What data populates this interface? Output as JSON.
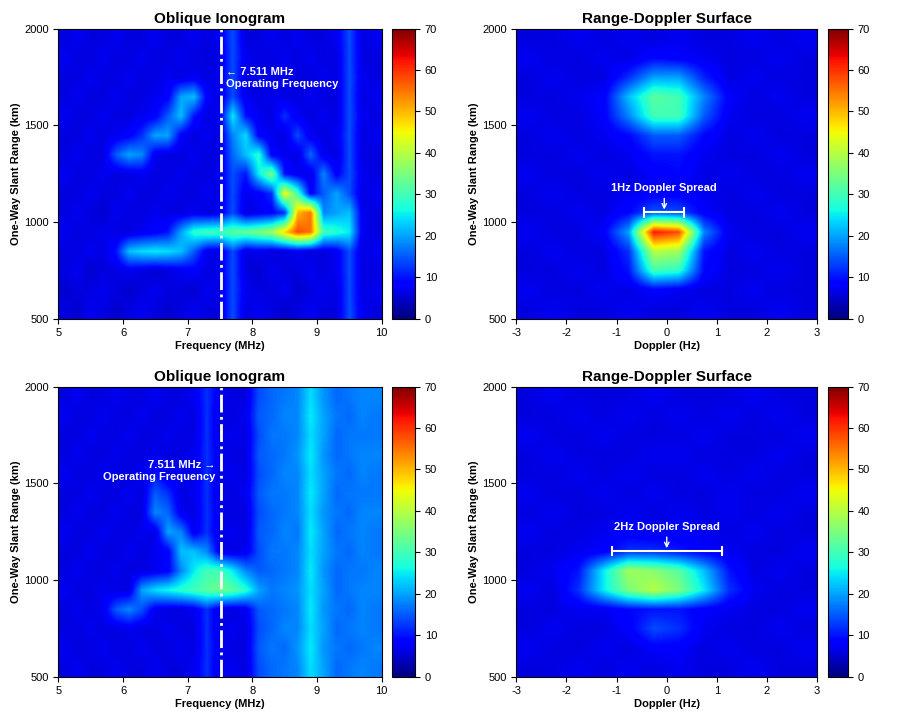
{
  "chart_data": [
    {
      "type": "heatmap",
      "title": "Oblique Ionogram",
      "x_label": "Frequency (MHz)",
      "y_label": "One-Way Slant Range (km)",
      "xlim": [
        5,
        10
      ],
      "ylim": [
        500,
        2000
      ],
      "xticks": [
        5,
        6,
        7,
        8,
        9,
        10
      ],
      "yticks": [
        500,
        1000,
        1500,
        2000
      ],
      "colorbar": {
        "range": [
          0,
          70
        ],
        "ticks": [
          0,
          10,
          20,
          30,
          40,
          50,
          60,
          70
        ]
      },
      "operating_frequency": {
        "value": 7.511,
        "label": "← 7.511 MHz\nOperating Frequency"
      },
      "cells": [
        [
          6,
          5,
          7,
          6,
          5,
          6,
          7,
          6,
          5,
          6,
          7,
          6,
          6,
          14,
          6,
          7,
          6,
          5,
          6,
          7,
          6,
          6,
          14,
          7,
          6
        ],
        [
          5,
          6,
          6,
          7,
          6,
          5,
          6,
          7,
          6,
          6,
          5,
          7,
          6,
          14,
          7,
          6,
          6,
          7,
          5,
          6,
          7,
          6,
          14,
          6,
          7
        ],
        [
          6,
          7,
          5,
          6,
          6,
          7,
          6,
          5,
          6,
          7,
          8,
          6,
          7,
          14,
          6,
          5,
          7,
          6,
          6,
          7,
          6,
          7,
          14,
          6,
          6
        ],
        [
          6,
          6,
          7,
          6,
          10,
          22,
          24,
          25,
          24,
          22,
          15,
          7,
          6,
          14,
          6,
          7,
          6,
          6,
          7,
          6,
          6,
          7,
          14,
          6,
          7
        ],
        [
          7,
          6,
          6,
          7,
          6,
          6,
          7,
          8,
          10,
          20,
          28,
          30,
          30,
          32,
          33,
          35,
          38,
          48,
          58,
          55,
          30,
          28,
          25,
          7,
          6
        ],
        [
          6,
          7,
          6,
          5,
          7,
          6,
          6,
          7,
          6,
          6,
          7,
          6,
          7,
          14,
          6,
          7,
          8,
          12,
          50,
          55,
          18,
          20,
          22,
          7,
          6
        ],
        [
          6,
          6,
          7,
          6,
          6,
          7,
          6,
          6,
          7,
          6,
          6,
          7,
          6,
          14,
          7,
          8,
          12,
          45,
          30,
          8,
          15,
          20,
          14,
          6,
          7
        ],
        [
          7,
          6,
          6,
          7,
          6,
          6,
          7,
          6,
          6,
          7,
          6,
          6,
          7,
          14,
          10,
          25,
          35,
          10,
          7,
          6,
          18,
          8,
          14,
          7,
          6
        ],
        [
          6,
          7,
          6,
          6,
          15,
          20,
          18,
          7,
          6,
          6,
          7,
          6,
          6,
          16,
          22,
          28,
          8,
          7,
          6,
          16,
          7,
          6,
          14,
          6,
          6
        ],
        [
          6,
          6,
          7,
          6,
          7,
          8,
          12,
          20,
          20,
          8,
          6,
          7,
          6,
          18,
          24,
          8,
          7,
          6,
          14,
          7,
          6,
          7,
          14,
          6,
          7
        ],
        [
          7,
          6,
          6,
          7,
          6,
          6,
          7,
          8,
          15,
          22,
          10,
          6,
          7,
          25,
          10,
          7,
          6,
          12,
          7,
          6,
          7,
          6,
          14,
          7,
          6
        ],
        [
          6,
          7,
          6,
          6,
          7,
          6,
          6,
          7,
          8,
          20,
          22,
          8,
          6,
          14,
          7,
          6,
          7,
          6,
          6,
          7,
          6,
          6,
          14,
          6,
          7
        ],
        [
          6,
          6,
          7,
          6,
          6,
          7,
          6,
          6,
          7,
          6,
          7,
          6,
          7,
          14,
          6,
          7,
          6,
          7,
          6,
          6,
          7,
          6,
          14,
          7,
          6
        ],
        [
          7,
          6,
          6,
          7,
          6,
          6,
          7,
          6,
          6,
          7,
          6,
          6,
          6,
          14,
          7,
          6,
          6,
          7,
          6,
          7,
          6,
          6,
          14,
          6,
          6
        ],
        [
          6,
          7,
          6,
          6,
          7,
          6,
          6,
          7,
          6,
          6,
          7,
          6,
          7,
          14,
          6,
          6,
          7,
          6,
          7,
          6,
          6,
          7,
          14,
          6,
          7
        ]
      ]
    },
    {
      "type": "heatmap",
      "title": "Range-Doppler Surface",
      "x_label": "Doppler (Hz)",
      "y_label": "One-Way Slant Range (km)",
      "xlim": [
        -3,
        3
      ],
      "ylim": [
        500,
        2000
      ],
      "xticks": [
        -3,
        -2,
        -1,
        0,
        1,
        2,
        3
      ],
      "yticks": [
        500,
        1000,
        1500,
        2000
      ],
      "colorbar": {
        "range": [
          0,
          70
        ],
        "ticks": [
          0,
          10,
          20,
          30,
          40,
          50,
          60,
          70
        ]
      },
      "spread": {
        "label": "1Hz Doppler Spread",
        "x": [
          -0.45,
          0.35
        ],
        "y": 1050
      },
      "cells": [
        [
          6,
          7,
          6,
          6,
          7,
          6,
          6,
          7,
          6,
          6,
          7,
          6
        ],
        [
          7,
          6,
          6,
          7,
          6,
          8,
          7,
          6,
          6,
          7,
          6,
          6
        ],
        [
          6,
          6,
          7,
          6,
          10,
          30,
          28,
          9,
          6,
          6,
          7,
          6
        ],
        [
          6,
          7,
          6,
          6,
          12,
          40,
          38,
          10,
          6,
          7,
          6,
          6
        ],
        [
          7,
          6,
          6,
          8,
          20,
          62,
          58,
          18,
          7,
          6,
          6,
          7
        ],
        [
          6,
          6,
          7,
          6,
          9,
          15,
          14,
          8,
          6,
          6,
          7,
          6
        ],
        [
          6,
          7,
          6,
          6,
          7,
          8,
          8,
          7,
          6,
          7,
          6,
          6
        ],
        [
          7,
          6,
          6,
          7,
          6,
          8,
          9,
          6,
          7,
          6,
          6,
          7
        ],
        [
          6,
          6,
          7,
          6,
          7,
          10,
          10,
          7,
          6,
          6,
          7,
          6
        ],
        [
          6,
          7,
          6,
          7,
          9,
          15,
          15,
          9,
          6,
          7,
          6,
          6
        ],
        [
          7,
          6,
          6,
          8,
          18,
          30,
          30,
          15,
          7,
          6,
          6,
          7
        ],
        [
          6,
          6,
          7,
          8,
          22,
          32,
          30,
          18,
          8,
          6,
          7,
          6
        ],
        [
          6,
          7,
          6,
          6,
          12,
          20,
          20,
          11,
          6,
          7,
          6,
          6
        ],
        [
          7,
          6,
          6,
          7,
          6,
          9,
          8,
          7,
          6,
          6,
          7,
          6
        ],
        [
          6,
          6,
          7,
          6,
          7,
          6,
          7,
          6,
          6,
          7,
          6,
          7
        ]
      ]
    },
    {
      "type": "heatmap",
      "title": "Oblique Ionogram",
      "x_label": "Frequency (MHz)",
      "y_label": "One-Way Slant Range (km)",
      "xlim": [
        5,
        10
      ],
      "ylim": [
        500,
        2000
      ],
      "xticks": [
        5,
        6,
        7,
        8,
        9,
        10
      ],
      "yticks": [
        500,
        1000,
        1500,
        2000
      ],
      "colorbar": {
        "range": [
          0,
          70
        ],
        "ticks": [
          0,
          10,
          20,
          30,
          40,
          50,
          60,
          70
        ]
      },
      "operating_frequency": {
        "value": 7.511,
        "label": "7.511 MHz →\nOperating Frequency"
      },
      "cells": [
        [
          6,
          7,
          6,
          6,
          7,
          6,
          6,
          7,
          6,
          6,
          7,
          12,
          6,
          7,
          6,
          14,
          16,
          17,
          18,
          24,
          20,
          16,
          17,
          18,
          17
        ],
        [
          7,
          6,
          6,
          7,
          6,
          6,
          7,
          6,
          6,
          7,
          6,
          12,
          7,
          6,
          6,
          15,
          17,
          16,
          19,
          25,
          19,
          17,
          16,
          17,
          18
        ],
        [
          6,
          6,
          7,
          6,
          6,
          7,
          6,
          6,
          7,
          6,
          6,
          12,
          6,
          7,
          6,
          14,
          16,
          18,
          18,
          24,
          20,
          16,
          17,
          18,
          17
        ],
        [
          6,
          7,
          6,
          7,
          15,
          18,
          14,
          7,
          6,
          6,
          7,
          12,
          6,
          6,
          7,
          15,
          16,
          17,
          18,
          25,
          19,
          17,
          16,
          18,
          17
        ],
        [
          7,
          6,
          6,
          7,
          6,
          6,
          20,
          24,
          26,
          28,
          30,
          32,
          34,
          32,
          28,
          20,
          17,
          18,
          19,
          24,
          20,
          16,
          17,
          18,
          18
        ],
        [
          6,
          7,
          6,
          6,
          7,
          6,
          6,
          7,
          8,
          18,
          25,
          30,
          30,
          25,
          18,
          15,
          16,
          17,
          18,
          25,
          19,
          16,
          17,
          17,
          18
        ],
        [
          6,
          6,
          7,
          6,
          6,
          7,
          6,
          7,
          8,
          22,
          22,
          18,
          7,
          6,
          7,
          14,
          17,
          17,
          18,
          24,
          20,
          17,
          16,
          18,
          17
        ],
        [
          7,
          6,
          6,
          7,
          6,
          6,
          7,
          6,
          20,
          18,
          7,
          12,
          6,
          7,
          6,
          15,
          16,
          18,
          17,
          25,
          20,
          16,
          17,
          18,
          17
        ],
        [
          6,
          7,
          6,
          6,
          7,
          6,
          6,
          18,
          16,
          7,
          6,
          12,
          7,
          6,
          6,
          14,
          16,
          17,
          18,
          24,
          19,
          17,
          16,
          18,
          18
        ],
        [
          6,
          6,
          7,
          6,
          6,
          7,
          6,
          15,
          12,
          6,
          7,
          12,
          6,
          6,
          7,
          15,
          17,
          17,
          18,
          25,
          20,
          16,
          17,
          17,
          17
        ],
        [
          7,
          6,
          6,
          7,
          6,
          6,
          7,
          10,
          6,
          7,
          6,
          12,
          6,
          7,
          6,
          14,
          16,
          18,
          18,
          24,
          20,
          17,
          16,
          18,
          17
        ],
        [
          6,
          7,
          6,
          6,
          7,
          6,
          6,
          7,
          6,
          6,
          7,
          12,
          7,
          6,
          6,
          15,
          16,
          17,
          19,
          25,
          19,
          16,
          17,
          18,
          18
        ],
        [
          6,
          6,
          7,
          6,
          6,
          7,
          6,
          6,
          7,
          6,
          6,
          12,
          6,
          7,
          6,
          14,
          17,
          17,
          18,
          24,
          20,
          16,
          17,
          17,
          17
        ],
        [
          7,
          6,
          6,
          7,
          6,
          6,
          7,
          6,
          6,
          7,
          6,
          12,
          6,
          6,
          7,
          15,
          16,
          18,
          18,
          25,
          20,
          17,
          16,
          18,
          17
        ],
        [
          6,
          7,
          6,
          6,
          7,
          6,
          6,
          7,
          6,
          6,
          7,
          12,
          7,
          6,
          6,
          14,
          16,
          17,
          18,
          24,
          19,
          16,
          17,
          18,
          18
        ]
      ]
    },
    {
      "type": "heatmap",
      "title": "Range-Doppler Surface",
      "x_label": "Doppler (Hz)",
      "y_label": "One-Way Slant Range (km)",
      "xlim": [
        -3,
        3
      ],
      "ylim": [
        500,
        2000
      ],
      "xticks": [
        -3,
        -2,
        -1,
        0,
        1,
        2,
        3
      ],
      "yticks": [
        500,
        1000,
        1500,
        2000
      ],
      "colorbar": {
        "range": [
          0,
          70
        ],
        "ticks": [
          0,
          10,
          20,
          30,
          40,
          50,
          60,
          70
        ]
      },
      "spread": {
        "label": "2Hz Doppler Spread",
        "x": [
          -1.1,
          1.1
        ],
        "y": 1150
      },
      "cells": [
        [
          6,
          6,
          7,
          6,
          7,
          6,
          7,
          6,
          6,
          7,
          6,
          6
        ],
        [
          7,
          6,
          6,
          7,
          6,
          8,
          8,
          6,
          7,
          6,
          6,
          7
        ],
        [
          6,
          7,
          6,
          6,
          8,
          14,
          12,
          7,
          6,
          6,
          7,
          6
        ],
        [
          6,
          6,
          7,
          7,
          9,
          10,
          10,
          8,
          7,
          6,
          6,
          7
        ],
        [
          7,
          6,
          12,
          25,
          35,
          40,
          35,
          25,
          12,
          7,
          6,
          6
        ],
        [
          6,
          7,
          10,
          25,
          38,
          36,
          32,
          22,
          10,
          6,
          7,
          6
        ],
        [
          6,
          6,
          7,
          8,
          12,
          12,
          10,
          8,
          7,
          6,
          6,
          7
        ],
        [
          7,
          6,
          6,
          7,
          8,
          7,
          8,
          7,
          6,
          7,
          6,
          6
        ],
        [
          6,
          7,
          6,
          6,
          7,
          6,
          7,
          6,
          7,
          6,
          7,
          6
        ],
        [
          7,
          6,
          6,
          7,
          6,
          7,
          6,
          6,
          7,
          6,
          6,
          7
        ],
        [
          6,
          6,
          7,
          6,
          7,
          6,
          6,
          7,
          6,
          7,
          6,
          6
        ],
        [
          6,
          7,
          6,
          6,
          6,
          7,
          7,
          6,
          6,
          6,
          7,
          6
        ],
        [
          7,
          6,
          6,
          7,
          6,
          6,
          6,
          7,
          6,
          6,
          6,
          7
        ],
        [
          6,
          6,
          7,
          6,
          7,
          6,
          7,
          6,
          7,
          6,
          7,
          6
        ],
        [
          6,
          7,
          6,
          6,
          6,
          7,
          6,
          6,
          6,
          7,
          6,
          6
        ]
      ]
    }
  ]
}
